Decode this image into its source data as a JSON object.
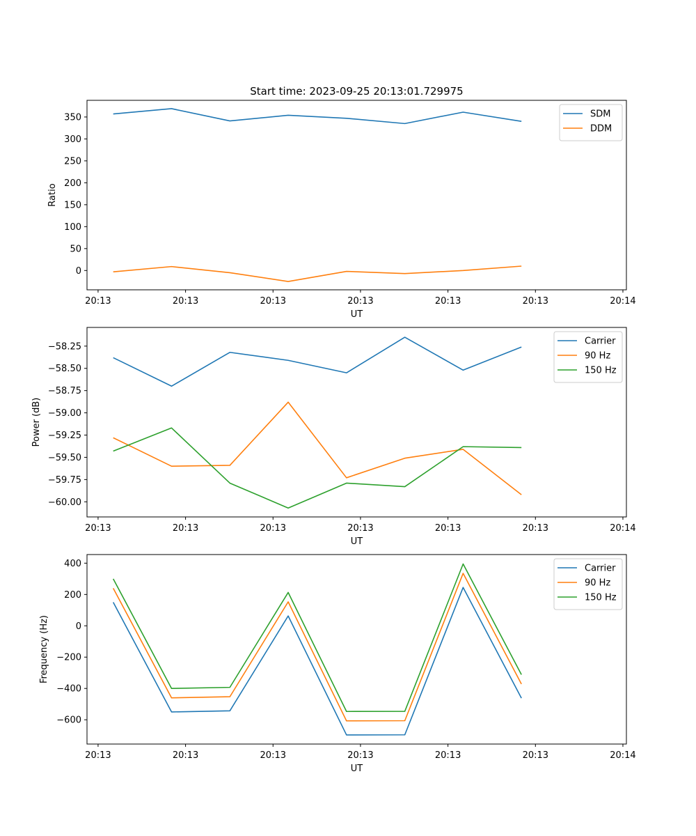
{
  "chart_data": [
    {
      "type": "line",
      "title": "Start time: 2023-09-25 20:13:01.729975",
      "xlabel": "UT",
      "ylabel": "Ratio",
      "x": [
        1,
        2,
        3,
        4,
        5,
        6,
        7,
        8
      ],
      "xlim": [
        0.55,
        9.8
      ],
      "x_ticks": [
        0.74,
        2.24,
        3.74,
        5.24,
        6.74,
        8.24,
        9.74
      ],
      "x_tick_labels": [
        "20:13",
        "20:13",
        "20:13",
        "20:13",
        "20:13",
        "20:13",
        "20:14"
      ],
      "ylim": [
        -44,
        388
      ],
      "y_ticks": [
        0,
        50,
        100,
        150,
        200,
        250,
        300,
        350
      ],
      "y_tick_labels": [
        "0",
        "50",
        "100",
        "150",
        "200",
        "250",
        "300",
        "350"
      ],
      "legend_position": "top-right",
      "series": [
        {
          "name": "SDM",
          "color": "#1f77b4",
          "values": [
            357,
            369,
            341,
            354,
            347,
            335,
            361,
            340
          ]
        },
        {
          "name": "DDM",
          "color": "#ff7f0e",
          "values": [
            -3,
            9,
            -5,
            -25,
            -2,
            -7,
            0,
            10
          ]
        }
      ]
    },
    {
      "type": "line",
      "title": "",
      "xlabel": "UT",
      "ylabel": "Power (dB)",
      "x": [
        1,
        2,
        3,
        4,
        5,
        6,
        7,
        8
      ],
      "xlim": [
        0.55,
        9.8
      ],
      "x_ticks": [
        0.74,
        2.24,
        3.74,
        5.24,
        6.74,
        8.24,
        9.74
      ],
      "x_tick_labels": [
        "20:13",
        "20:13",
        "20:13",
        "20:13",
        "20:13",
        "20:13",
        "20:14"
      ],
      "ylim": [
        -60.17,
        -58.04
      ],
      "y_ticks": [
        -60.0,
        -59.75,
        -59.5,
        -59.25,
        -59.0,
        -58.75,
        -58.5,
        -58.25
      ],
      "y_tick_labels": [
        "−60.00",
        "−59.75",
        "−59.50",
        "−59.25",
        "−59.00",
        "−58.75",
        "−58.50",
        "−58.25"
      ],
      "legend_position": "top-right",
      "series": [
        {
          "name": "Carrier",
          "color": "#1f77b4",
          "values": [
            -58.38,
            -58.7,
            -58.32,
            -58.41,
            -58.55,
            -58.15,
            -58.52,
            -58.26
          ]
        },
        {
          "name": "90 Hz",
          "color": "#ff7f0e",
          "values": [
            -59.28,
            -59.6,
            -59.59,
            -58.88,
            -59.73,
            -59.51,
            -59.41,
            -59.92
          ]
        },
        {
          "name": "150 Hz",
          "color": "#2ca02c",
          "values": [
            -59.43,
            -59.17,
            -59.79,
            -60.07,
            -59.79,
            -59.83,
            -59.38,
            -59.39
          ]
        }
      ]
    },
    {
      "type": "line",
      "title": "",
      "xlabel": "UT",
      "ylabel": "Frequency (Hz)",
      "x": [
        1,
        2,
        3,
        4,
        5,
        6,
        7,
        8
      ],
      "xlim": [
        0.55,
        9.8
      ],
      "x_ticks": [
        0.74,
        2.24,
        3.74,
        5.24,
        6.74,
        8.24,
        9.74
      ],
      "x_tick_labels": [
        "20:13",
        "20:13",
        "20:13",
        "20:13",
        "20:13",
        "20:13",
        "20:14"
      ],
      "ylim": [
        -755,
        455
      ],
      "y_ticks": [
        -600,
        -400,
        -200,
        0,
        200,
        400
      ],
      "y_tick_labels": [
        "−600",
        "−400",
        "−200",
        "0",
        "200",
        "400"
      ],
      "legend_position": "top-right",
      "series": [
        {
          "name": "Carrier",
          "color": "#1f77b4",
          "values": [
            150,
            -550,
            -543,
            63,
            -697,
            -696,
            245,
            -462
          ]
        },
        {
          "name": "90 Hz",
          "color": "#ff7f0e",
          "values": [
            240,
            -460,
            -453,
            153,
            -607,
            -606,
            335,
            -372
          ]
        },
        {
          "name": "150 Hz",
          "color": "#2ca02c",
          "values": [
            300,
            -400,
            -393,
            213,
            -547,
            -546,
            395,
            -312
          ]
        }
      ]
    }
  ]
}
